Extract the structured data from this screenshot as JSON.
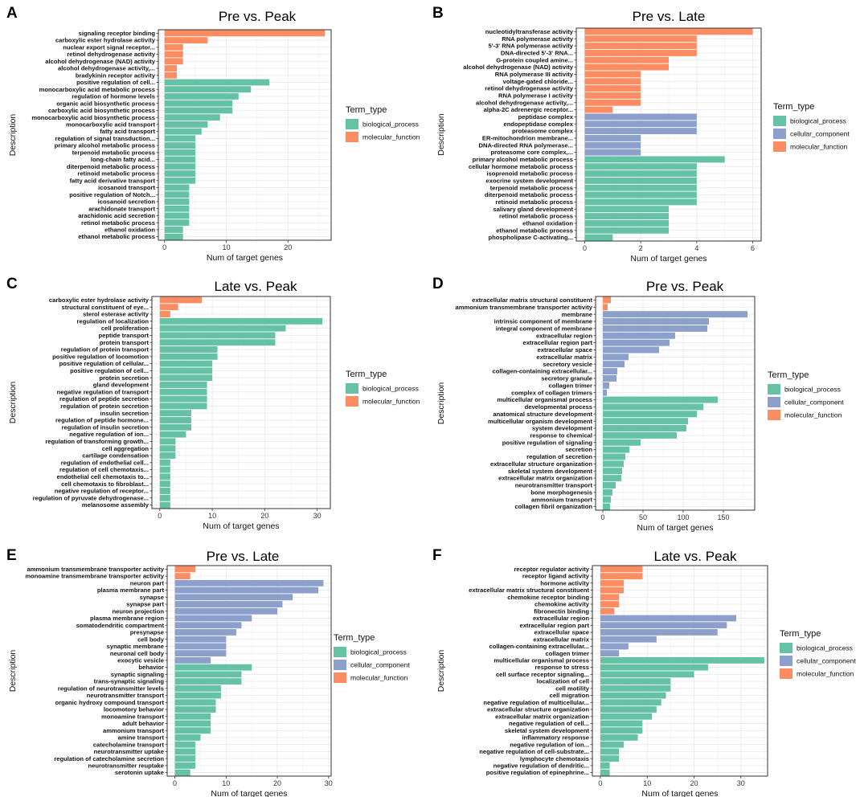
{
  "colors": {
    "biological_process": "#66c2a5",
    "cellular_component": "#8da0cb",
    "molecular_function": "#fc8d62"
  },
  "chart_data": [
    {
      "panel": "A",
      "type": "bar",
      "orientation": "horizontal",
      "title": "Pre vs. Peak",
      "xlabel": "Num of target genes",
      "ylabel": "Description",
      "xlim": [
        -1,
        27
      ],
      "xticks": [
        0,
        10,
        20
      ],
      "legend_title": "Term_type",
      "legend": [
        "biological_process",
        "molecular_function"
      ],
      "categories": [
        "signaling receptor binding",
        "carboxylic ester hydrolase activity",
        "nuclear export signal receptor...",
        "retinol dehydrogenase activity",
        "alcohol dehydrogenase (NAD) activity",
        "alcohol dehydrogenase activity,...",
        "bradykinin receptor activity",
        "positive regulation of cell...",
        "monocarboxylic acid metabolic process",
        "regulation of hormone levels",
        "organic acid biosynthetic process",
        "carboxylic acid biosynthetic process",
        "monocarboxylic acid biosynthetic process",
        "monocarboxylic acid transport",
        "fatty acid transport",
        "regulation of signal transduction...",
        "primary alcohol metabolic process",
        "terpenoid metabolic process",
        "long-chain fatty acid...",
        "diterpenoid metabolic process",
        "retinoid metabolic process",
        "fatty acid derivative transport",
        "icosanoid transport",
        "positive regulation of Notch...",
        "icosanoid secretion",
        "arachidonate transport",
        "arachidonic acid secretion",
        "retinol metabolic process",
        "ethanol oxidation",
        "ethanol metabolic process"
      ],
      "values": [
        26,
        7,
        3,
        3,
        3,
        2,
        2,
        17,
        14,
        12,
        11,
        11,
        9,
        7,
        6,
        5,
        5,
        5,
        5,
        5,
        5,
        5,
        4,
        4,
        4,
        4,
        4,
        4,
        3,
        3
      ],
      "types": [
        "molecular_function",
        "molecular_function",
        "molecular_function",
        "molecular_function",
        "molecular_function",
        "molecular_function",
        "molecular_function",
        "biological_process",
        "biological_process",
        "biological_process",
        "biological_process",
        "biological_process",
        "biological_process",
        "biological_process",
        "biological_process",
        "biological_process",
        "biological_process",
        "biological_process",
        "biological_process",
        "biological_process",
        "biological_process",
        "biological_process",
        "biological_process",
        "biological_process",
        "biological_process",
        "biological_process",
        "biological_process",
        "biological_process",
        "biological_process",
        "biological_process"
      ]
    },
    {
      "panel": "B",
      "type": "bar",
      "orientation": "horizontal",
      "title": "Pre vs. Late",
      "xlabel": "Num of target genes",
      "ylabel": "Description",
      "xlim": [
        -0.3,
        6.3
      ],
      "xticks": [
        0,
        2,
        4,
        6
      ],
      "legend_title": "Term_type",
      "legend": [
        "biological_process",
        "cellular_component",
        "molecular_function"
      ],
      "categories": [
        "nucleotidyltransferase activity",
        "RNA polymerase activity",
        "5'-3' RNA polymerase activity",
        "DNA-directed 5'-3' RNA...",
        "G-protein coupled amine...",
        "alcohol dehydrogenase (NAD) activity",
        "RNA polymerase III activity",
        "voltage-gated chloride...",
        "retinol dehydrogenase activity",
        "RNA polymerase I activity",
        "alcohol dehydrogenase activity,...",
        "alpha-2C adrenergic receptor...",
        "peptidase complex",
        "endopeptidase complex",
        "proteasome complex",
        "ER-mitochondrion membrane...",
        "DNA-directed RNA polymerase...",
        "proteasome core complex,...",
        "primary alcohol metabolic process",
        "cellular hormone metabolic process",
        "isoprenoid metabolic process",
        "exocrine system development",
        "terpenoid metabolic process",
        "diterpenoid metabolic process",
        "retinoid metabolic process",
        "salivary gland development",
        "retinol metabolic process",
        "ethanol oxidation",
        "ethanol metabolic process",
        "phospholipase C-activating..."
      ],
      "values": [
        6,
        4,
        4,
        4,
        3,
        3,
        2,
        2,
        2,
        2,
        2,
        1,
        4,
        4,
        4,
        2,
        2,
        2,
        5,
        4,
        4,
        4,
        4,
        4,
        4,
        3,
        3,
        3,
        3,
        1
      ],
      "types": [
        "molecular_function",
        "molecular_function",
        "molecular_function",
        "molecular_function",
        "molecular_function",
        "molecular_function",
        "molecular_function",
        "molecular_function",
        "molecular_function",
        "molecular_function",
        "molecular_function",
        "molecular_function",
        "cellular_component",
        "cellular_component",
        "cellular_component",
        "cellular_component",
        "cellular_component",
        "cellular_component",
        "biological_process",
        "biological_process",
        "biological_process",
        "biological_process",
        "biological_process",
        "biological_process",
        "biological_process",
        "biological_process",
        "biological_process",
        "biological_process",
        "biological_process",
        "biological_process"
      ]
    },
    {
      "panel": "C",
      "type": "bar",
      "orientation": "horizontal",
      "title": "Late vs. Peak",
      "xlabel": "Num of target genes",
      "ylabel": "Description",
      "xlim": [
        -1.5,
        32.5
      ],
      "xticks": [
        0,
        10,
        20,
        30
      ],
      "legend_title": "Term_type",
      "legend": [
        "biological_process",
        "molecular_function"
      ],
      "categories": [
        "carboxylic ester hydrolase activity",
        "structural constituent of eye...",
        "sterol esterase activity",
        "regulation of localization",
        "cell proliferation",
        "peptide transport",
        "protein transport",
        "regulation of protein transport",
        "positive regulation of locomotion",
        "positive regulation of cellular...",
        "positive regulation of cell...",
        "protein secretion",
        "gland development",
        "negative regulation of transport",
        "regulation of peptide secretion",
        "regulation of protein secretion",
        "insulin secretion",
        "regulation of peptide hormone...",
        "regulation of insulin secretion",
        "negative regulation of ion...",
        "regulation of transforming growth...",
        "cell aggregation",
        "cartilage condensation",
        "regulation of endothelial cell...",
        "regulation of cell chemotaxis...",
        "endothelial cell chemotaxis to...",
        "cell chemotaxis to fibroblast...",
        "negative regulation of receptor...",
        "regulation of pyruvate dehydrogenase...",
        "melanosome assembly"
      ],
      "values": [
        8,
        3.5,
        2,
        31,
        24,
        22,
        22,
        11,
        11,
        10,
        10,
        10,
        9,
        9,
        9,
        9,
        6,
        6,
        6,
        5,
        3,
        3,
        3,
        2,
        2,
        2,
        2,
        2,
        2,
        2
      ],
      "types": [
        "molecular_function",
        "molecular_function",
        "molecular_function",
        "biological_process",
        "biological_process",
        "biological_process",
        "biological_process",
        "biological_process",
        "biological_process",
        "biological_process",
        "biological_process",
        "biological_process",
        "biological_process",
        "biological_process",
        "biological_process",
        "biological_process",
        "biological_process",
        "biological_process",
        "biological_process",
        "biological_process",
        "biological_process",
        "biological_process",
        "biological_process",
        "biological_process",
        "biological_process",
        "biological_process",
        "biological_process",
        "biological_process",
        "biological_process",
        "biological_process"
      ]
    },
    {
      "panel": "D",
      "type": "bar",
      "orientation": "horizontal",
      "title": "Pre vs. Peak",
      "xlabel": "Num of target genes",
      "ylabel": "Description",
      "xlim": [
        -9,
        189
      ],
      "xticks": [
        0,
        50,
        100,
        150
      ],
      "legend_title": "Term_type",
      "legend": [
        "biological_process",
        "cellular_component",
        "molecular_function"
      ],
      "categories": [
        "extracellular matrix structural constituent",
        "ammonium transmembrane transporter activity",
        "membrane",
        "intrinsic component of membrane",
        "integral component of membrane",
        "extracellular region",
        "extracellular region part",
        "extracellular space",
        "extracellular matrix",
        "secretory vesicle",
        "collagen-containing extracellular...",
        "secretory granule",
        "collagen trimer",
        "complex of collagen trimers",
        "multicellular organismal process",
        "developmental process",
        "anatomical structure development",
        "multicellular organism development",
        "system development",
        "response to chemical",
        "positive regulation of signaling",
        "secretion",
        "regulation of secretion",
        "extracellular structure organization",
        "skeletal system development",
        "extracellular matrix organization",
        "neurotransmitter transport",
        "bone morphogenesis",
        "ammonium transport",
        "collagen fibril organization"
      ],
      "values": [
        10,
        6,
        180,
        132,
        130,
        90,
        83,
        70,
        32,
        27,
        18,
        17,
        8,
        5,
        143,
        125,
        117,
        106,
        104,
        92,
        47,
        33,
        28,
        26,
        24,
        23,
        16,
        12,
        10,
        9
      ],
      "types": [
        "molecular_function",
        "molecular_function",
        "cellular_component",
        "cellular_component",
        "cellular_component",
        "cellular_component",
        "cellular_component",
        "cellular_component",
        "cellular_component",
        "cellular_component",
        "cellular_component",
        "cellular_component",
        "cellular_component",
        "cellular_component",
        "biological_process",
        "biological_process",
        "biological_process",
        "biological_process",
        "biological_process",
        "biological_process",
        "biological_process",
        "biological_process",
        "biological_process",
        "biological_process",
        "biological_process",
        "biological_process",
        "biological_process",
        "biological_process",
        "biological_process",
        "biological_process"
      ]
    },
    {
      "panel": "E",
      "type": "bar",
      "orientation": "horizontal",
      "title": "Pre vs. Late",
      "xlabel": "Num of target genes",
      "ylabel": "Description",
      "xlim": [
        -1.5,
        30.5
      ],
      "xticks": [
        0,
        10,
        20,
        30
      ],
      "legend_title": "Term_type",
      "legend": [
        "biological_process",
        "cellular_component",
        "molecular_function"
      ],
      "categories": [
        "ammonium transmembrane transporter activity",
        "monoamine transmembrane transporter activity",
        "neuron part",
        "plasma membrane part",
        "synapse",
        "synapse part",
        "neuron projection",
        "plasma membrane region",
        "somatodendritic compartment",
        "presynapse",
        "cell body",
        "synaptic membrane",
        "neuronal cell body",
        "exocytic vesicle",
        "behavior",
        "synaptic signaling",
        "trans-synaptic signaling",
        "regulation of neurotransmitter levels",
        "neurotransmitter transport",
        "organic hydroxy compound transport",
        "locomotory behavior",
        "monoamine transport",
        "adult behavior",
        "ammonium transport",
        "amine transport",
        "catecholamine transport",
        "neurotransmitter uptake",
        "regulation of catecholamine secretion",
        "neurotransmitter reuptake",
        "serotonin uptake"
      ],
      "values": [
        4,
        3,
        29,
        28,
        23,
        21,
        20,
        15,
        13,
        12,
        10,
        10,
        10,
        7,
        15,
        13,
        13,
        9,
        9,
        8,
        8,
        7,
        7,
        7,
        5,
        4,
        4,
        4,
        4,
        3
      ],
      "types": [
        "molecular_function",
        "molecular_function",
        "cellular_component",
        "cellular_component",
        "cellular_component",
        "cellular_component",
        "cellular_component",
        "cellular_component",
        "cellular_component",
        "cellular_component",
        "cellular_component",
        "cellular_component",
        "cellular_component",
        "cellular_component",
        "biological_process",
        "biological_process",
        "biological_process",
        "biological_process",
        "biological_process",
        "biological_process",
        "biological_process",
        "biological_process",
        "biological_process",
        "biological_process",
        "biological_process",
        "biological_process",
        "biological_process",
        "biological_process",
        "biological_process",
        "biological_process"
      ]
    },
    {
      "panel": "F",
      "type": "bar",
      "orientation": "horizontal",
      "title": "Late vs. Peak",
      "xlabel": "Num of target genes",
      "ylabel": "Description",
      "xlim": [
        -1.7,
        35.7
      ],
      "xticks": [
        0,
        10,
        20,
        30
      ],
      "legend_title": "Term_type",
      "legend": [
        "biological_process",
        "cellular_component",
        "molecular_function"
      ],
      "categories": [
        "receptor regulator activity",
        "receptor ligand activity",
        "hormone activity",
        "extracellular matrix structural constituent",
        "chemokine receptor binding",
        "chemokine activity",
        "fibronectin binding",
        "extracellular region",
        "extracellular region part",
        "extracellular space",
        "extracellular matrix",
        "collagen-containing extracellular...",
        "collagen trimer",
        "multicellular organismal process",
        "response to stress",
        "cell surface receptor signaling...",
        "localization of cell",
        "cell motility",
        "cell migration",
        "negative regulation of multicellular...",
        "extracellular structure organization",
        "extracellular matrix organization",
        "negative regulation of cell...",
        "skeletal system development",
        "inflammatory response",
        "negative regulation of ion...",
        "negative regulation of cell-substrate...",
        "lymphocyte chemotaxis",
        "negative regulation of dendritic...",
        "positive regulation of epinephrine..."
      ],
      "values": [
        9,
        9,
        5,
        5,
        4,
        4,
        3,
        29,
        27,
        25,
        12,
        6,
        4,
        35,
        23,
        20,
        15,
        15,
        14,
        13,
        12,
        11,
        9,
        9,
        8,
        5,
        4,
        4,
        2,
        2
      ],
      "types": [
        "molecular_function",
        "molecular_function",
        "molecular_function",
        "molecular_function",
        "molecular_function",
        "molecular_function",
        "molecular_function",
        "cellular_component",
        "cellular_component",
        "cellular_component",
        "cellular_component",
        "cellular_component",
        "cellular_component",
        "biological_process",
        "biological_process",
        "biological_process",
        "biological_process",
        "biological_process",
        "biological_process",
        "biological_process",
        "biological_process",
        "biological_process",
        "biological_process",
        "biological_process",
        "biological_process",
        "biological_process",
        "biological_process",
        "biological_process",
        "biological_process",
        "biological_process"
      ]
    }
  ]
}
